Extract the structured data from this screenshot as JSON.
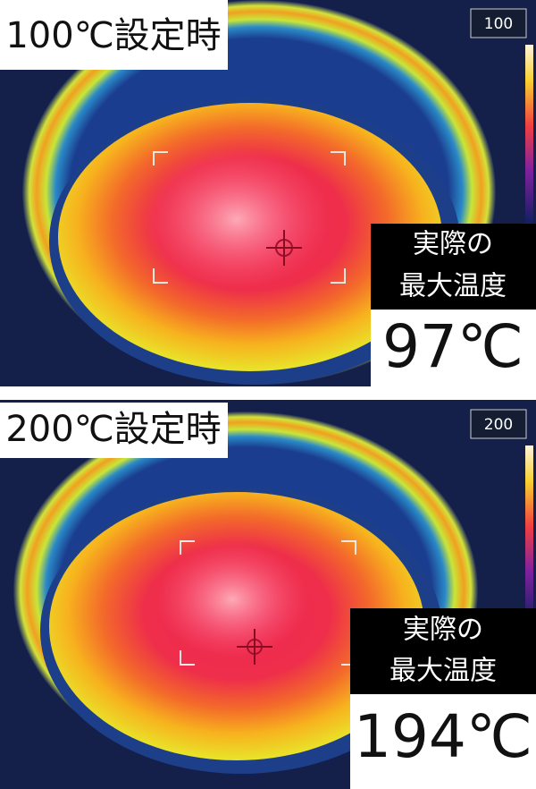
{
  "panels": [
    {
      "setting_label": "100℃設定時",
      "scale_max": "100",
      "caption_lines": [
        "実際の",
        "最大温度"
      ],
      "max_temp": "97℃"
    },
    {
      "setting_label": "200℃設定時",
      "scale_max": "200",
      "caption_lines": [
        "実際の",
        "最大温度"
      ],
      "max_temp": "194℃"
    }
  ]
}
